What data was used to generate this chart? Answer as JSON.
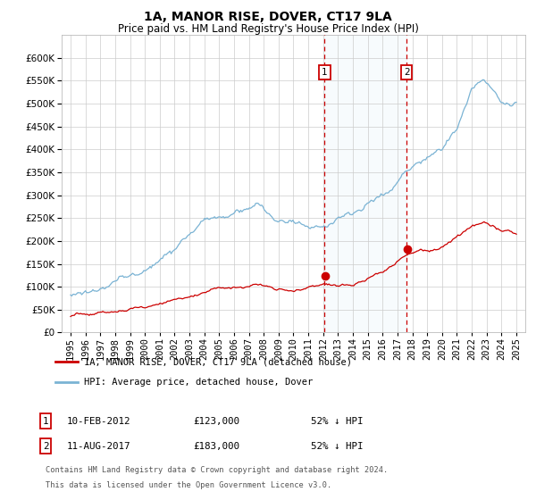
{
  "title": "1A, MANOR RISE, DOVER, CT17 9LA",
  "subtitle": "Price paid vs. HM Land Registry's House Price Index (HPI)",
  "ylim": [
    0,
    650000
  ],
  "yticks": [
    0,
    50000,
    100000,
    150000,
    200000,
    250000,
    300000,
    350000,
    400000,
    450000,
    500000,
    550000,
    600000
  ],
  "hpi_color": "#7ab3d4",
  "price_color": "#cc0000",
  "vline_color": "#cc0000",
  "purchase1_year": 2012.1,
  "purchase1_price": 123000,
  "purchase2_year": 2017.62,
  "purchase2_price": 183000,
  "legend_entry1": "1A, MANOR RISE, DOVER, CT17 9LA (detached house)",
  "legend_entry2": "HPI: Average price, detached house, Dover",
  "purchase1_date": "10-FEB-2012",
  "purchase1_amount": "£123,000",
  "purchase1_pct": "52% ↓ HPI",
  "purchase2_date": "11-AUG-2017",
  "purchase2_amount": "£183,000",
  "purchase2_pct": "52% ↓ HPI",
  "footnote1": "Contains HM Land Registry data © Crown copyright and database right 2024.",
  "footnote2": "This data is licensed under the Open Government Licence v3.0.",
  "background_color": "#ffffff",
  "grid_color": "#cccccc",
  "title_fontsize": 10,
  "subtitle_fontsize": 8.5,
  "tick_fontsize": 7.5
}
